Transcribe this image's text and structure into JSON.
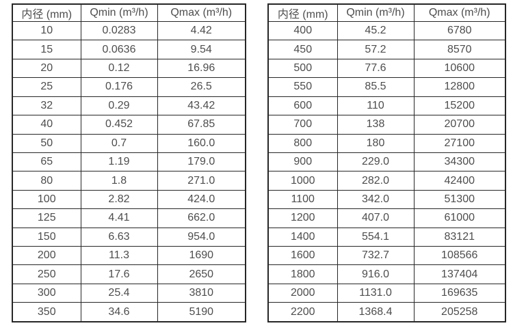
{
  "page": {
    "background_color": "#ffffff",
    "border_color": "#262626",
    "text_color": "#4d4d4d"
  },
  "chart_data": [
    {
      "type": "table",
      "name": "flow-spec-table-dn10-dn350",
      "columns": [
        "内径 (mm)",
        "Qmin (m³/h)",
        "Qmax (m³/h)"
      ],
      "rows": [
        [
          "10",
          "0.0283",
          "4.42"
        ],
        [
          "15",
          "0.0636",
          "9.54"
        ],
        [
          "20",
          "0.12",
          "16.96"
        ],
        [
          "25",
          "0.176",
          "26.5"
        ],
        [
          "32",
          "0.29",
          "43.42"
        ],
        [
          "40",
          "0.452",
          "67.85"
        ],
        [
          "50",
          "0.7",
          "160.0"
        ],
        [
          "65",
          "1.19",
          "179.0"
        ],
        [
          "80",
          "1.8",
          "271.0"
        ],
        [
          "100",
          "2.82",
          "424.0"
        ],
        [
          "125",
          "4.41",
          "662.0"
        ],
        [
          "150",
          "6.63",
          "954.0"
        ],
        [
          "200",
          "11.3",
          "1690"
        ],
        [
          "250",
          "17.6",
          "2650"
        ],
        [
          "300",
          "25.4",
          "3810"
        ],
        [
          "350",
          "34.6",
          "5190"
        ]
      ]
    },
    {
      "type": "table",
      "name": "flow-spec-table-dn400-dn2200",
      "columns": [
        "内径 (mm)",
        "Qmin (m³/h)",
        "Qmax (m³/h)"
      ],
      "rows": [
        [
          "400",
          "45.2",
          "6780"
        ],
        [
          "450",
          "57.2",
          "8570"
        ],
        [
          "500",
          "77.6",
          "10600"
        ],
        [
          "550",
          "85.5",
          "12800"
        ],
        [
          "600",
          "110",
          "15200"
        ],
        [
          "700",
          "138",
          "20700"
        ],
        [
          "800",
          "180",
          "27100"
        ],
        [
          "900",
          "229.0",
          "34300"
        ],
        [
          "1000",
          "282.0",
          "42400"
        ],
        [
          "1100",
          "342.0",
          "51300"
        ],
        [
          "1200",
          "407.0",
          "61000"
        ],
        [
          "1400",
          "554.1",
          "83121"
        ],
        [
          "1600",
          "732.7",
          "108566"
        ],
        [
          "1800",
          "916.0",
          "137404"
        ],
        [
          "2000",
          "1131.0",
          "169635"
        ],
        [
          "2200",
          "1368.4",
          "205258"
        ]
      ]
    }
  ]
}
